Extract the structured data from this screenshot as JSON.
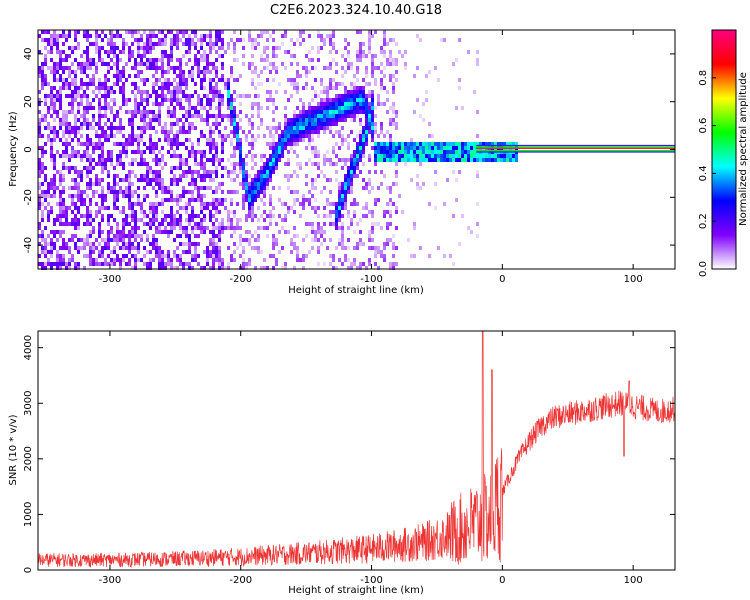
{
  "title": "C2E6.2023.324.10.40.G18",
  "chart_data": [
    {
      "type": "heatmap",
      "title": "C2E6.2023.324.10.40.G18",
      "xlabel": "Height of straight line (km)",
      "ylabel": "Frequency (Hz)",
      "xlim": [
        -355,
        132
      ],
      "ylim": [
        -50,
        50
      ],
      "xticks": [
        -300,
        -200,
        -100,
        0,
        100
      ],
      "yticks": [
        -40,
        -20,
        0,
        20,
        40
      ],
      "grid": false,
      "colorbar": {
        "label": "Normalized spectral amplitude",
        "range": [
          0,
          1
        ],
        "ticks": [
          0.0,
          0.2,
          0.4,
          0.6,
          0.8
        ],
        "colormap": [
          "#ffffff",
          "#8000ff",
          "#0000ff",
          "#00ffff",
          "#00ff00",
          "#ffff00",
          "#ff0000",
          "#ff0080"
        ]
      },
      "features": {
        "noise_region_km": [
          -355,
          -80
        ],
        "descending_track": [
          [
            -212,
            28
          ],
          [
            -205,
            10
          ],
          [
            -195,
            -20
          ],
          [
            -180,
            -8
          ],
          [
            -165,
            8
          ],
          [
            -150,
            12
          ],
          [
            -125,
            18
          ],
          [
            -108,
            22
          ],
          [
            -100,
            10
          ]
        ],
        "second_track": [
          [
            -130,
            -30
          ],
          [
            -118,
            -10
          ],
          [
            -105,
            8
          ],
          [
            -100,
            20
          ]
        ],
        "carrier_band": {
          "x": [
            -100,
            132
          ],
          "freq": 0,
          "amplitude": 0.9
        },
        "noise_level": 0.15
      }
    },
    {
      "type": "line",
      "xlabel": "Height of straight line (km)",
      "ylabel": "SNR (10 * v/v)",
      "xlim": [
        -355,
        132
      ],
      "ylim": [
        0,
        4300
      ],
      "xticks": [
        -300,
        -200,
        -100,
        0,
        100
      ],
      "yticks": [
        0,
        1000,
        2000,
        3000,
        4000
      ],
      "grid": false,
      "color": "#ee3333",
      "x": [
        -355,
        -300,
        -250,
        -200,
        -150,
        -100,
        -60,
        -40,
        -25,
        -15,
        -8,
        0,
        10,
        20,
        30,
        40,
        50,
        70,
        90,
        100,
        110,
        120,
        132
      ],
      "y": [
        180,
        180,
        200,
        240,
        300,
        380,
        500,
        650,
        800,
        900,
        950,
        1400,
        1900,
        2300,
        2600,
        2750,
        2800,
        2900,
        3000,
        2950,
        2900,
        2850,
        2900
      ],
      "spikes": [
        {
          "x": -15,
          "y": 4300
        },
        {
          "x": -8,
          "y": 3600
        },
        {
          "x": 93,
          "y": 2050
        },
        {
          "x": 97,
          "y": 3400
        }
      ]
    }
  ]
}
